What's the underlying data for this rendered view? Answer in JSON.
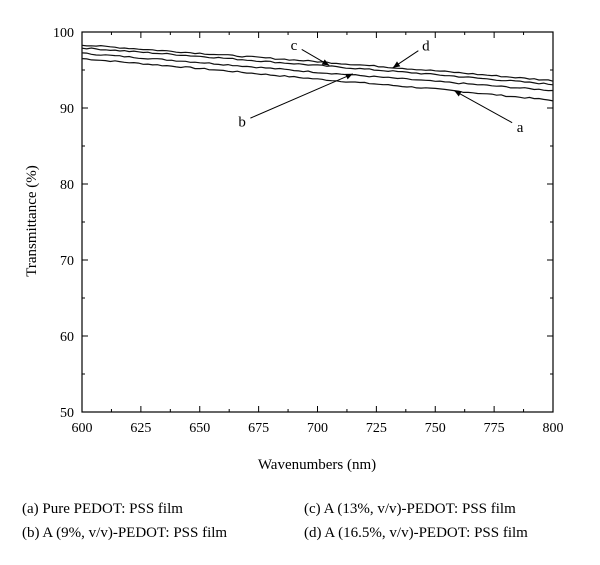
{
  "chart_data": {
    "type": "line",
    "title": "",
    "xlabel": "Wavenumbers (nm)",
    "ylabel": "Transmittance (%)",
    "xlim": [
      600,
      800
    ],
    "ylim": [
      50,
      100
    ],
    "xticks": [
      600,
      625,
      650,
      675,
      700,
      725,
      750,
      775,
      800
    ],
    "yticks": [
      50,
      60,
      70,
      80,
      90,
      100
    ],
    "grid": false,
    "legend_placement": "below",
    "series": [
      {
        "label": "a",
        "x": [
          600,
          650,
          700,
          750,
          800
        ],
        "y": [
          96.5,
          95.2,
          93.8,
          92.5,
          91.0
        ]
      },
      {
        "label": "b",
        "x": [
          600,
          650,
          700,
          750,
          800
        ],
        "y": [
          97.2,
          96.0,
          94.7,
          93.5,
          92.3
        ]
      },
      {
        "label": "c",
        "x": [
          600,
          650,
          700,
          750,
          800
        ],
        "y": [
          97.9,
          96.8,
          95.6,
          94.4,
          93.1
        ]
      },
      {
        "label": "d",
        "x": [
          600,
          650,
          700,
          750,
          800
        ],
        "y": [
          98.3,
          97.2,
          96.1,
          94.9,
          93.6
        ]
      }
    ],
    "annotations": [
      {
        "series": "a",
        "text": "a",
        "x": 758,
        "y": 92.3,
        "text_x": 786,
        "text_y": 87.5
      },
      {
        "series": "b",
        "text": "b",
        "x": 715,
        "y": 94.5,
        "text_x": 668,
        "text_y": 88.2
      },
      {
        "series": "c",
        "text": "c",
        "x": 705,
        "y": 95.6,
        "text_x": 690,
        "text_y": 98.3
      },
      {
        "series": "d",
        "text": "d",
        "x": 732,
        "y": 95.3,
        "text_x": 746,
        "text_y": 98.2
      }
    ]
  },
  "legend": {
    "a": "(a) Pure PEDOT: PSS film",
    "b": "(b) A (9%, v/v)-PEDOT: PSS film",
    "c": "(c) A (13%, v/v)-PEDOT: PSS film",
    "d": "(d) A (16.5%, v/v)-PEDOT: PSS film"
  }
}
